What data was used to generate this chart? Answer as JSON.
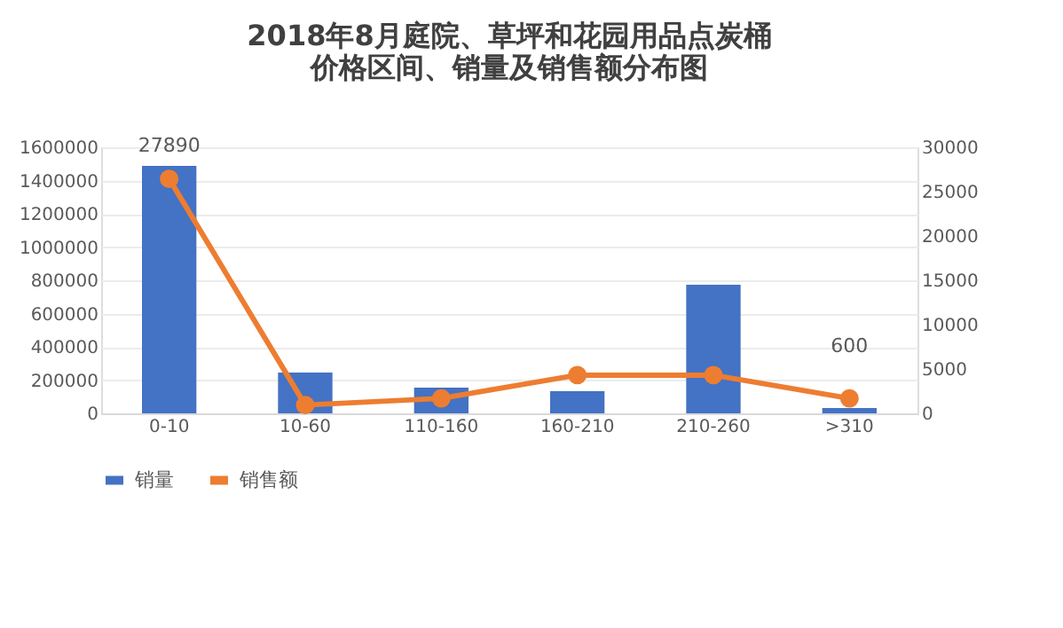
{
  "chart_data": {
    "type": "bar",
    "title": "2018年8月庭院、草坪和花园用品点炭桶价格区间、销量及销售额分布图",
    "categories": [
      "0-10",
      "10-60",
      "110-160",
      "160-210",
      "210-260",
      ">310"
    ],
    "series": [
      {
        "name": "销量",
        "axis": "y2",
        "color": "#4472c4",
        "values": [
          27890,
          4600,
          2900,
          2500,
          14500,
          600
        ],
        "value_labels": [
          "27890",
          null,
          null,
          null,
          null,
          "600"
        ]
      },
      {
        "name": "销售额",
        "type": "line",
        "color": "#ed7d31",
        "values": [
          1410000,
          50000,
          90000,
          230000,
          230000,
          90000
        ]
      }
    ],
    "ylim": [
      0,
      1600000
    ],
    "yticks": [
      0,
      200000,
      400000,
      600000,
      800000,
      1000000,
      1200000,
      1400000,
      1600000
    ],
    "y2lim": [
      0,
      30000
    ],
    "y2ticks": [
      0,
      5000,
      10000,
      15000,
      20000,
      25000,
      30000
    ],
    "grid": "y",
    "legend": "bottom",
    "marker": "circle",
    "line_style": "solid"
  }
}
